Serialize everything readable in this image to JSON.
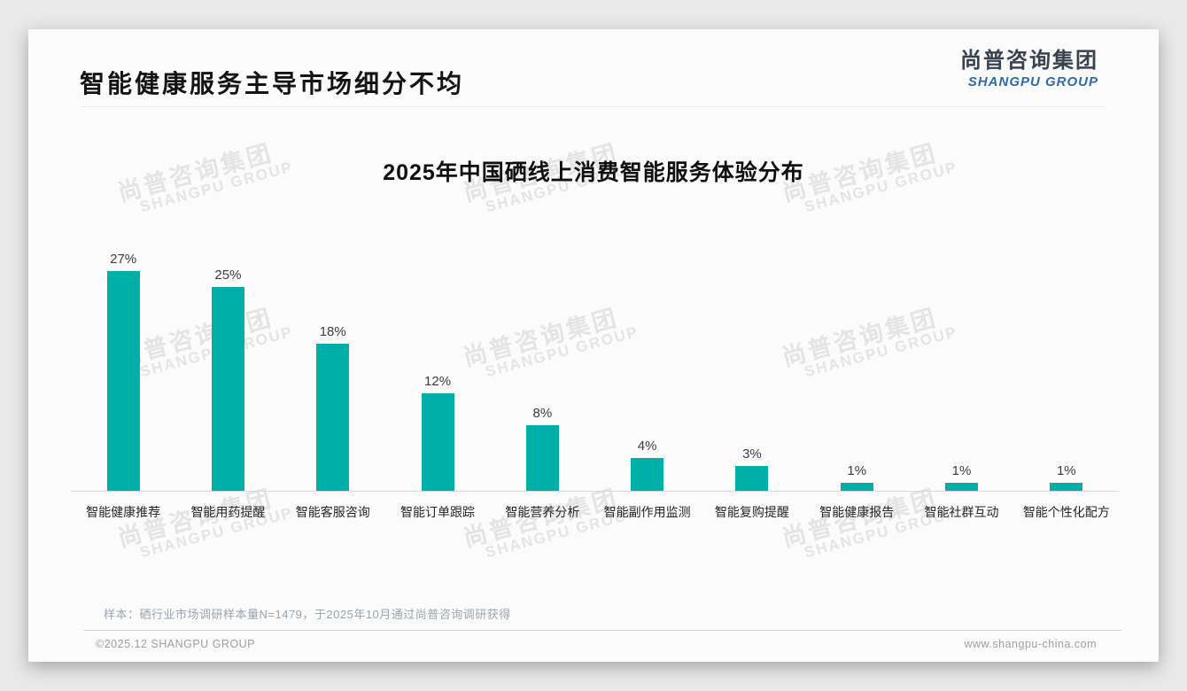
{
  "page": {
    "title": "智能健康服务主导市场细分不均",
    "logo": {
      "cn": "尚普咨询集团",
      "en": "SHANGPU GROUP"
    },
    "watermark": {
      "cn": "尚普咨询集团",
      "en": "SHANGPU GROUP"
    },
    "note": "样本：硒行业市场调研样本量N=1479，于2025年10月通过尚普咨询调研获得",
    "footer": {
      "copyright": "©2025.12 SHANGPU GROUP",
      "website": "www.shangpu-china.com"
    }
  },
  "chart_data": {
    "type": "bar",
    "title": "2025年中国硒线上消费智能服务体验分布",
    "categories": [
      "智能健康推荐",
      "智能用药提醒",
      "智能客服咨询",
      "智能订单跟踪",
      "智能营养分析",
      "智能副作用监测",
      "智能复购提醒",
      "智能健康报告",
      "智能社群互动",
      "智能个性化配方"
    ],
    "values": [
      27,
      25,
      18,
      12,
      8,
      4,
      3,
      1,
      1,
      1
    ],
    "unit": "%",
    "value_label_position": "above-bar",
    "bar_color": "#00AFA8",
    "axis_line_color": "#d9d9d9",
    "xlabel": "",
    "ylabel": "",
    "ylim": [
      0,
      30
    ],
    "grid": false,
    "legend": "none"
  }
}
